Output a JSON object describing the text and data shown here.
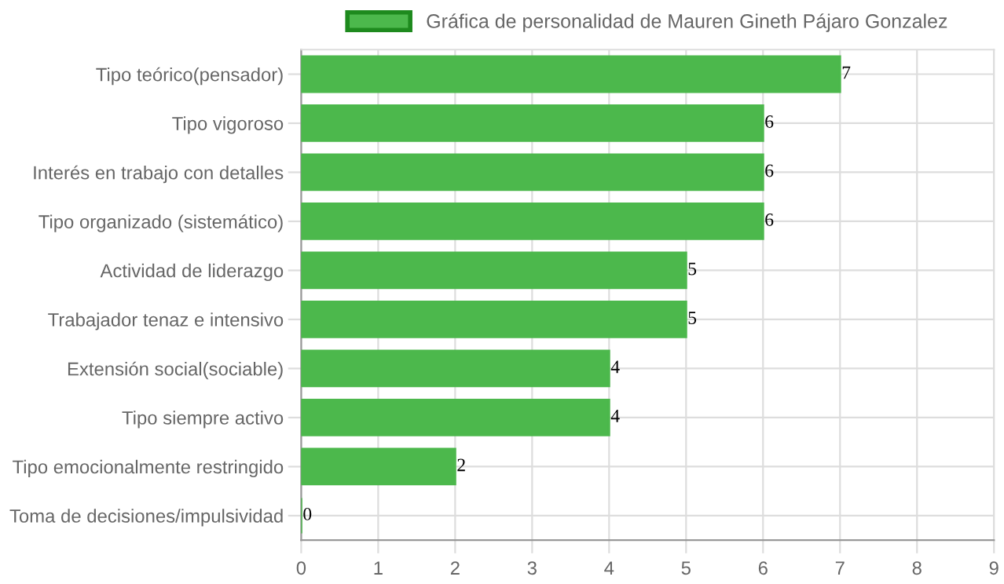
{
  "chart_data": {
    "type": "bar",
    "orientation": "horizontal",
    "categories": [
      "Tipo teórico(pensador)",
      "Tipo vigoroso",
      "Interés en trabajo con detalles",
      "Tipo organizado (sistemático)",
      "Actividad de liderazgo",
      "Trabajador tenaz e intensivo",
      "Extensión social(sociable)",
      "Tipo siempre activo",
      "Tipo emocionalmente restringido",
      "Toma de decisiones/impulsividad"
    ],
    "series": [
      {
        "name": "Gráfica de personalidad de Mauren Gineth Pájaro Gonzalez",
        "color": "#4cb84c",
        "values": [
          7,
          6,
          6,
          6,
          5,
          5,
          4,
          4,
          2,
          0
        ]
      }
    ],
    "xlim": [
      0,
      9
    ],
    "xticks": [
      0,
      1,
      2,
      3,
      4,
      5,
      6,
      7,
      8,
      9
    ],
    "grid": true,
    "legend": "top",
    "data_labels": true
  }
}
